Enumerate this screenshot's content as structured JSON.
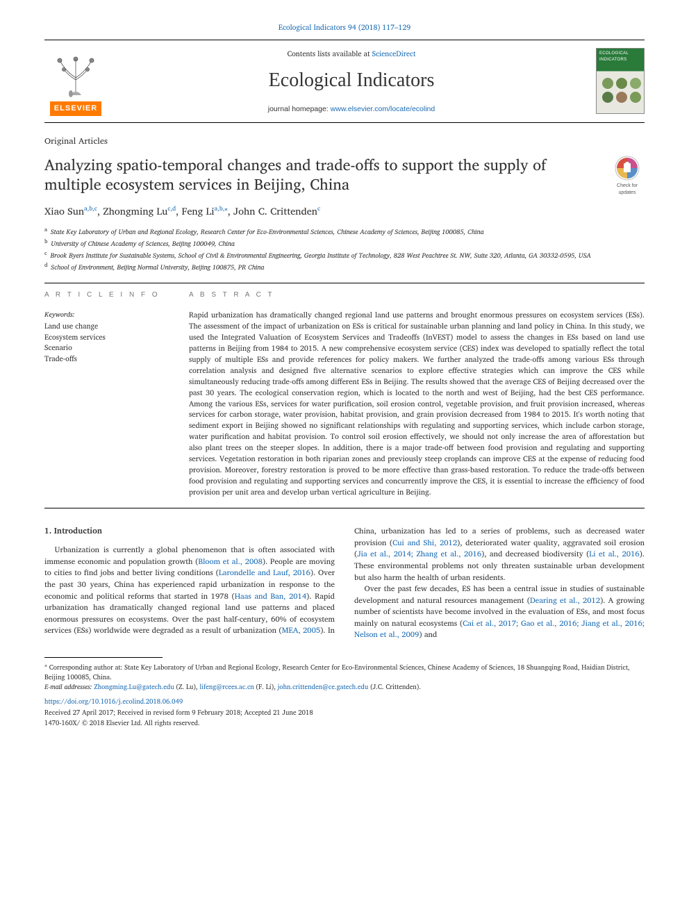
{
  "journal_ref": "Ecological Indicators 94 (2018) 117–129",
  "header": {
    "contents_prefix": "Contents lists available at ",
    "contents_link": "ScienceDirect",
    "journal_name": "Ecological Indicators",
    "homepage_prefix": "journal homepage: ",
    "homepage_link": "www.elsevier.com/locate/ecolind",
    "elsevier_label": "ELSEVIER",
    "cover_label": "ECOLOGICAL INDICATORS"
  },
  "article_type": "Original Articles",
  "title": "Analyzing spatio-temporal changes and trade-offs to support the supply of multiple ecosystem services in Beijing, China",
  "updates_badge": "Check for updates",
  "authors_html": "Xiao Sun<sup>a,b,c</sup>, Zhongming Lu<sup>c,d</sup>, Feng Li<sup>a,b,⁎</sup>, John C. Crittenden<sup>c</sup>",
  "affiliations": [
    {
      "sup": "a",
      "text": "State Key Laboratory of Urban and Regional Ecology, Research Center for Eco-Environmental Sciences, Chinese Academy of Sciences, Beijing 100085, China"
    },
    {
      "sup": "b",
      "text": "University of Chinese Academy of Sciences, Beijing 100049, China"
    },
    {
      "sup": "c",
      "text": "Brook Byers Institute for Sustainable Systems, School of Civil & Environmental Engineering, Georgia Institute of Technology, 828 West Peachtree St. NW, Suite 320, Atlanta, GA 30332-0595, USA"
    },
    {
      "sup": "d",
      "text": "School of Environment, Beijing Normal University, Beijing 100875, PR China"
    }
  ],
  "article_info_head": "A R T I C L E  I N F O",
  "abstract_head": "A B S T R A C T",
  "keywords_head": "Keywords:",
  "keywords": [
    "Land use change",
    "Ecosystem services",
    "Scenario",
    "Trade-offs"
  ],
  "abstract": "Rapid urbanization has dramatically changed regional land use patterns and brought enormous pressures on ecosystem services (ESs). The assessment of the impact of urbanization on ESs is critical for sustainable urban planning and land policy in China. In this study, we used the Integrated Valuation of Ecosystem Services and Tradeoffs (InVEST) model to assess the changes in ESs based on land use patterns in Beijing from 1984 to 2015. A new comprehensive ecosystem service (CES) index was developed to spatially reflect the total supply of multiple ESs and provide references for policy makers. We further analyzed the trade-offs among various ESs through correlation analysis and designed five alternative scenarios to explore effective strategies which can improve the CES while simultaneously reducing trade-offs among different ESs in Beijing. The results showed that the average CES of Beijing decreased over the past 30 years. The ecological conservation region, which is located to the north and west of Beijing, had the best CES performance. Among the various ESs, services for water purification, soil erosion control, vegetable provision, and fruit provision increased, whereas services for carbon storage, water provision, habitat provision, and grain provision decreased from 1984 to 2015. It's worth noting that sediment export in Beijing showed no significant relationships with regulating and supporting services, which include carbon storage, water purification and habitat provision. To control soil erosion effectively, we should not only increase the area of afforestation but also plant trees on the steeper slopes. In addition, there is a major trade-off between food provision and regulating and supporting services. Vegetation restoration in both riparian zones and previously steep croplands can improve CES at the expense of reducing food provision. Moreover, forestry restoration is proved to be more effective than grass-based restoration. To reduce the trade-offs between food provision and regulating and supporting services and concurrently improve the CES, it is essential to increase the efficiency of food provision per unit area and develop urban vertical agriculture in Beijing.",
  "body": {
    "section_number": "1.",
    "section_title": "Introduction",
    "p1_a": "Urbanization is currently a global phenomenon that is often associated with immense economic and population growth (",
    "p1_r1": "Bloom et al., 2008",
    "p1_b": "). People are moving to cities to find jobs and better living conditions (",
    "p1_r2": "Larondelle and Lauf, 2016",
    "p1_c": "). Over the past 30 years, China has experienced rapid urbanization in response to the economic and political reforms that started in 1978 (",
    "p1_r3": "Haas and Ban, 2014",
    "p1_d": "). Rapid urbanization has dramatically changed regional land use patterns and placed enormous pressures on ecosystems. Over the past half-century, 60% of ecosystem services (ESs) worldwide were degraded as a result of",
    "p2_a": "urbanization (",
    "p2_r1": "MEA, 2005",
    "p2_b": "). In China, urbanization has led to a series of problems, such as decreased water provision (",
    "p2_r2": "Cui and Shi, 2012",
    "p2_c": "), deteriorated water quality, aggravated soil erosion (",
    "p2_r3": "Jia et al., 2014; Zhang et al., 2016",
    "p2_d": "), and decreased biodiversity (",
    "p2_r4": "Li et al., 2016",
    "p2_e": "). These environmental problems not only threaten sustainable urban development but also harm the health of urban residents.",
    "p3_a": "Over the past few decades, ES has been a central issue in studies of sustainable development and natural resources management (",
    "p3_r1": "Dearing et al., 2012",
    "p3_b": "). A growing number of scientists have become involved in the evaluation of ESs, and most focus mainly on natural ecosystems (",
    "p3_r2": "Cai et al., 2017; Gao et al., 2016; Jiang et al., 2016; Nelson et al., 2009",
    "p3_c": ") and"
  },
  "footnotes": {
    "corr_marker": "⁎",
    "corr_text": "Corresponding author at: State Key Laboratory of Urban and Regional Ecology, Research Center for Eco-Environmental Sciences, Chinese Academy of Sciences, 18 Shuangqing Road, Haidian District, Beijing 100085, China.",
    "email_label": "E-mail addresses:",
    "emails": [
      {
        "addr": "Zhongming.Lu@gatech.edu",
        "who": "(Z. Lu)"
      },
      {
        "addr": "lifeng@rcees.ac.cn",
        "who": "(F. Li)"
      },
      {
        "addr": "john.crittenden@ce.gatech.edu",
        "who": "(J.C. Crittenden)"
      }
    ]
  },
  "doi": "https://doi.org/10.1016/j.ecolind.2018.06.049",
  "received": "Received 27 April 2017; Received in revised form 9 February 2018; Accepted 21 June 2018",
  "copyright": "1470-160X/ © 2018 Elsevier Ltd. All rights reserved.",
  "colors": {
    "link": "#1a6bb3",
    "elsevier_orange": "#ff7a00",
    "text": "#333333",
    "head_grey": "#777777"
  }
}
